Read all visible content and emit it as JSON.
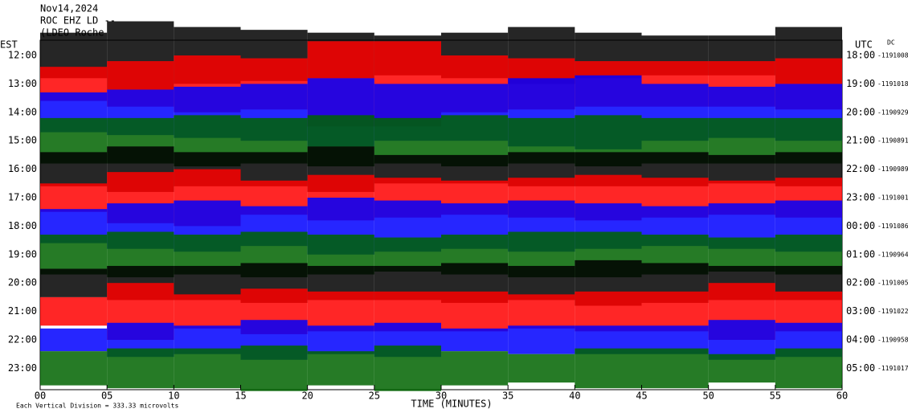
{
  "chart_data": {
    "type": "helicorder",
    "title_lines": [
      "Nov14,2024",
      "ROC EHZ LD --",
      "(LDEO Roche"
    ],
    "left_axis_label": "EST",
    "right_axis_label": "UTC",
    "dc_label": "DC",
    "xlabel": "TIME (MINUTES)",
    "footnote": "Each Vertical Division =  333.33 microvolts",
    "xlim": [
      0,
      60
    ],
    "xticks": [
      {
        "value": 0,
        "label": "00"
      },
      {
        "value": 5,
        "label": "05"
      },
      10,
      15,
      20,
      25,
      30,
      35,
      40,
      45,
      50,
      55,
      60
    ],
    "rows": [
      {
        "est": "12:00",
        "utc": "18:00",
        "dc": "-1191008",
        "color": "#000000",
        "values": [
          0.8,
          1.2,
          1.0,
          0.9,
          0.8,
          0.7,
          0.8,
          1.0,
          0.8,
          0.7,
          0.7,
          1.0
        ]
      },
      {
        "est": "13:00",
        "utc": "19:00",
        "dc": "-1191018",
        "color": "#ff0000",
        "values": [
          0.6,
          0.8,
          1.0,
          0.9,
          1.5,
          1.5,
          1.0,
          0.9,
          0.8,
          0.8,
          0.8,
          0.9
        ]
      },
      {
        "est": "14:00",
        "utc": "20:00",
        "dc": "-1190929",
        "color": "#0000ff",
        "values": [
          0.7,
          0.8,
          0.9,
          1.0,
          1.2,
          1.0,
          1.0,
          1.2,
          1.3,
          1.0,
          0.9,
          1.0
        ]
      },
      {
        "est": "15:00",
        "utc": "21:00",
        "dc": "-1190891",
        "color": "#006400",
        "values": [
          0.8,
          0.8,
          0.9,
          0.8,
          0.9,
          0.8,
          0.9,
          0.8,
          0.9,
          0.8,
          0.8,
          0.8
        ]
      },
      {
        "est": "16:00",
        "utc": "22:00",
        "dc": "-1190989",
        "color": "#000000",
        "values": [
          0.6,
          0.8,
          0.6,
          0.6,
          0.8,
          0.5,
          0.5,
          0.6,
          0.6,
          0.6,
          0.5,
          0.6
        ]
      },
      {
        "est": "17:00",
        "utc": "23:00",
        "dc": "-1191001",
        "color": "#ff0000",
        "values": [
          0.5,
          0.9,
          1.0,
          0.6,
          0.8,
          0.7,
          0.6,
          0.7,
          0.8,
          0.7,
          0.6,
          0.7
        ]
      },
      {
        "est": "18:00",
        "utc": "00:00",
        "dc": "-1191086",
        "color": "#0000ff",
        "values": [
          0.6,
          0.8,
          0.9,
          0.7,
          1.0,
          0.9,
          0.8,
          0.9,
          0.8,
          0.7,
          0.8,
          0.9
        ]
      },
      {
        "est": "19:00",
        "utc": "01:00",
        "dc": "-1190964",
        "color": "#006400",
        "values": [
          0.7,
          0.8,
          0.7,
          0.8,
          0.7,
          0.6,
          0.7,
          0.8,
          0.8,
          0.7,
          0.6,
          0.7
        ]
      },
      {
        "est": "20:00",
        "utc": "02:00",
        "dc": "-1191005",
        "color": "#000000",
        "values": [
          0.5,
          0.6,
          0.6,
          0.7,
          0.6,
          0.6,
          0.7,
          0.6,
          0.8,
          0.7,
          0.6,
          0.6
        ]
      },
      {
        "est": "21:00",
        "utc": "03:00",
        "dc": "-1191022",
        "color": "#ff0000",
        "values": [
          0.5,
          1.0,
          0.6,
          0.8,
          0.7,
          0.7,
          0.7,
          0.6,
          0.7,
          0.7,
          1.0,
          0.7
        ]
      },
      {
        "est": "22:00",
        "utc": "04:00",
        "dc": "-1190958",
        "color": "#0000ff",
        "values": [
          0.4,
          0.6,
          0.5,
          0.7,
          0.5,
          0.6,
          0.4,
          0.5,
          0.5,
          0.5,
          0.7,
          0.6
        ]
      },
      {
        "est": "23:00",
        "utc": "05:00",
        "dc": "-1191017",
        "color": "#006400",
        "values": [
          0.6,
          0.7,
          0.7,
          0.8,
          0.6,
          0.8,
          0.6,
          0.5,
          0.7,
          0.7,
          0.5,
          0.7
        ]
      }
    ]
  }
}
